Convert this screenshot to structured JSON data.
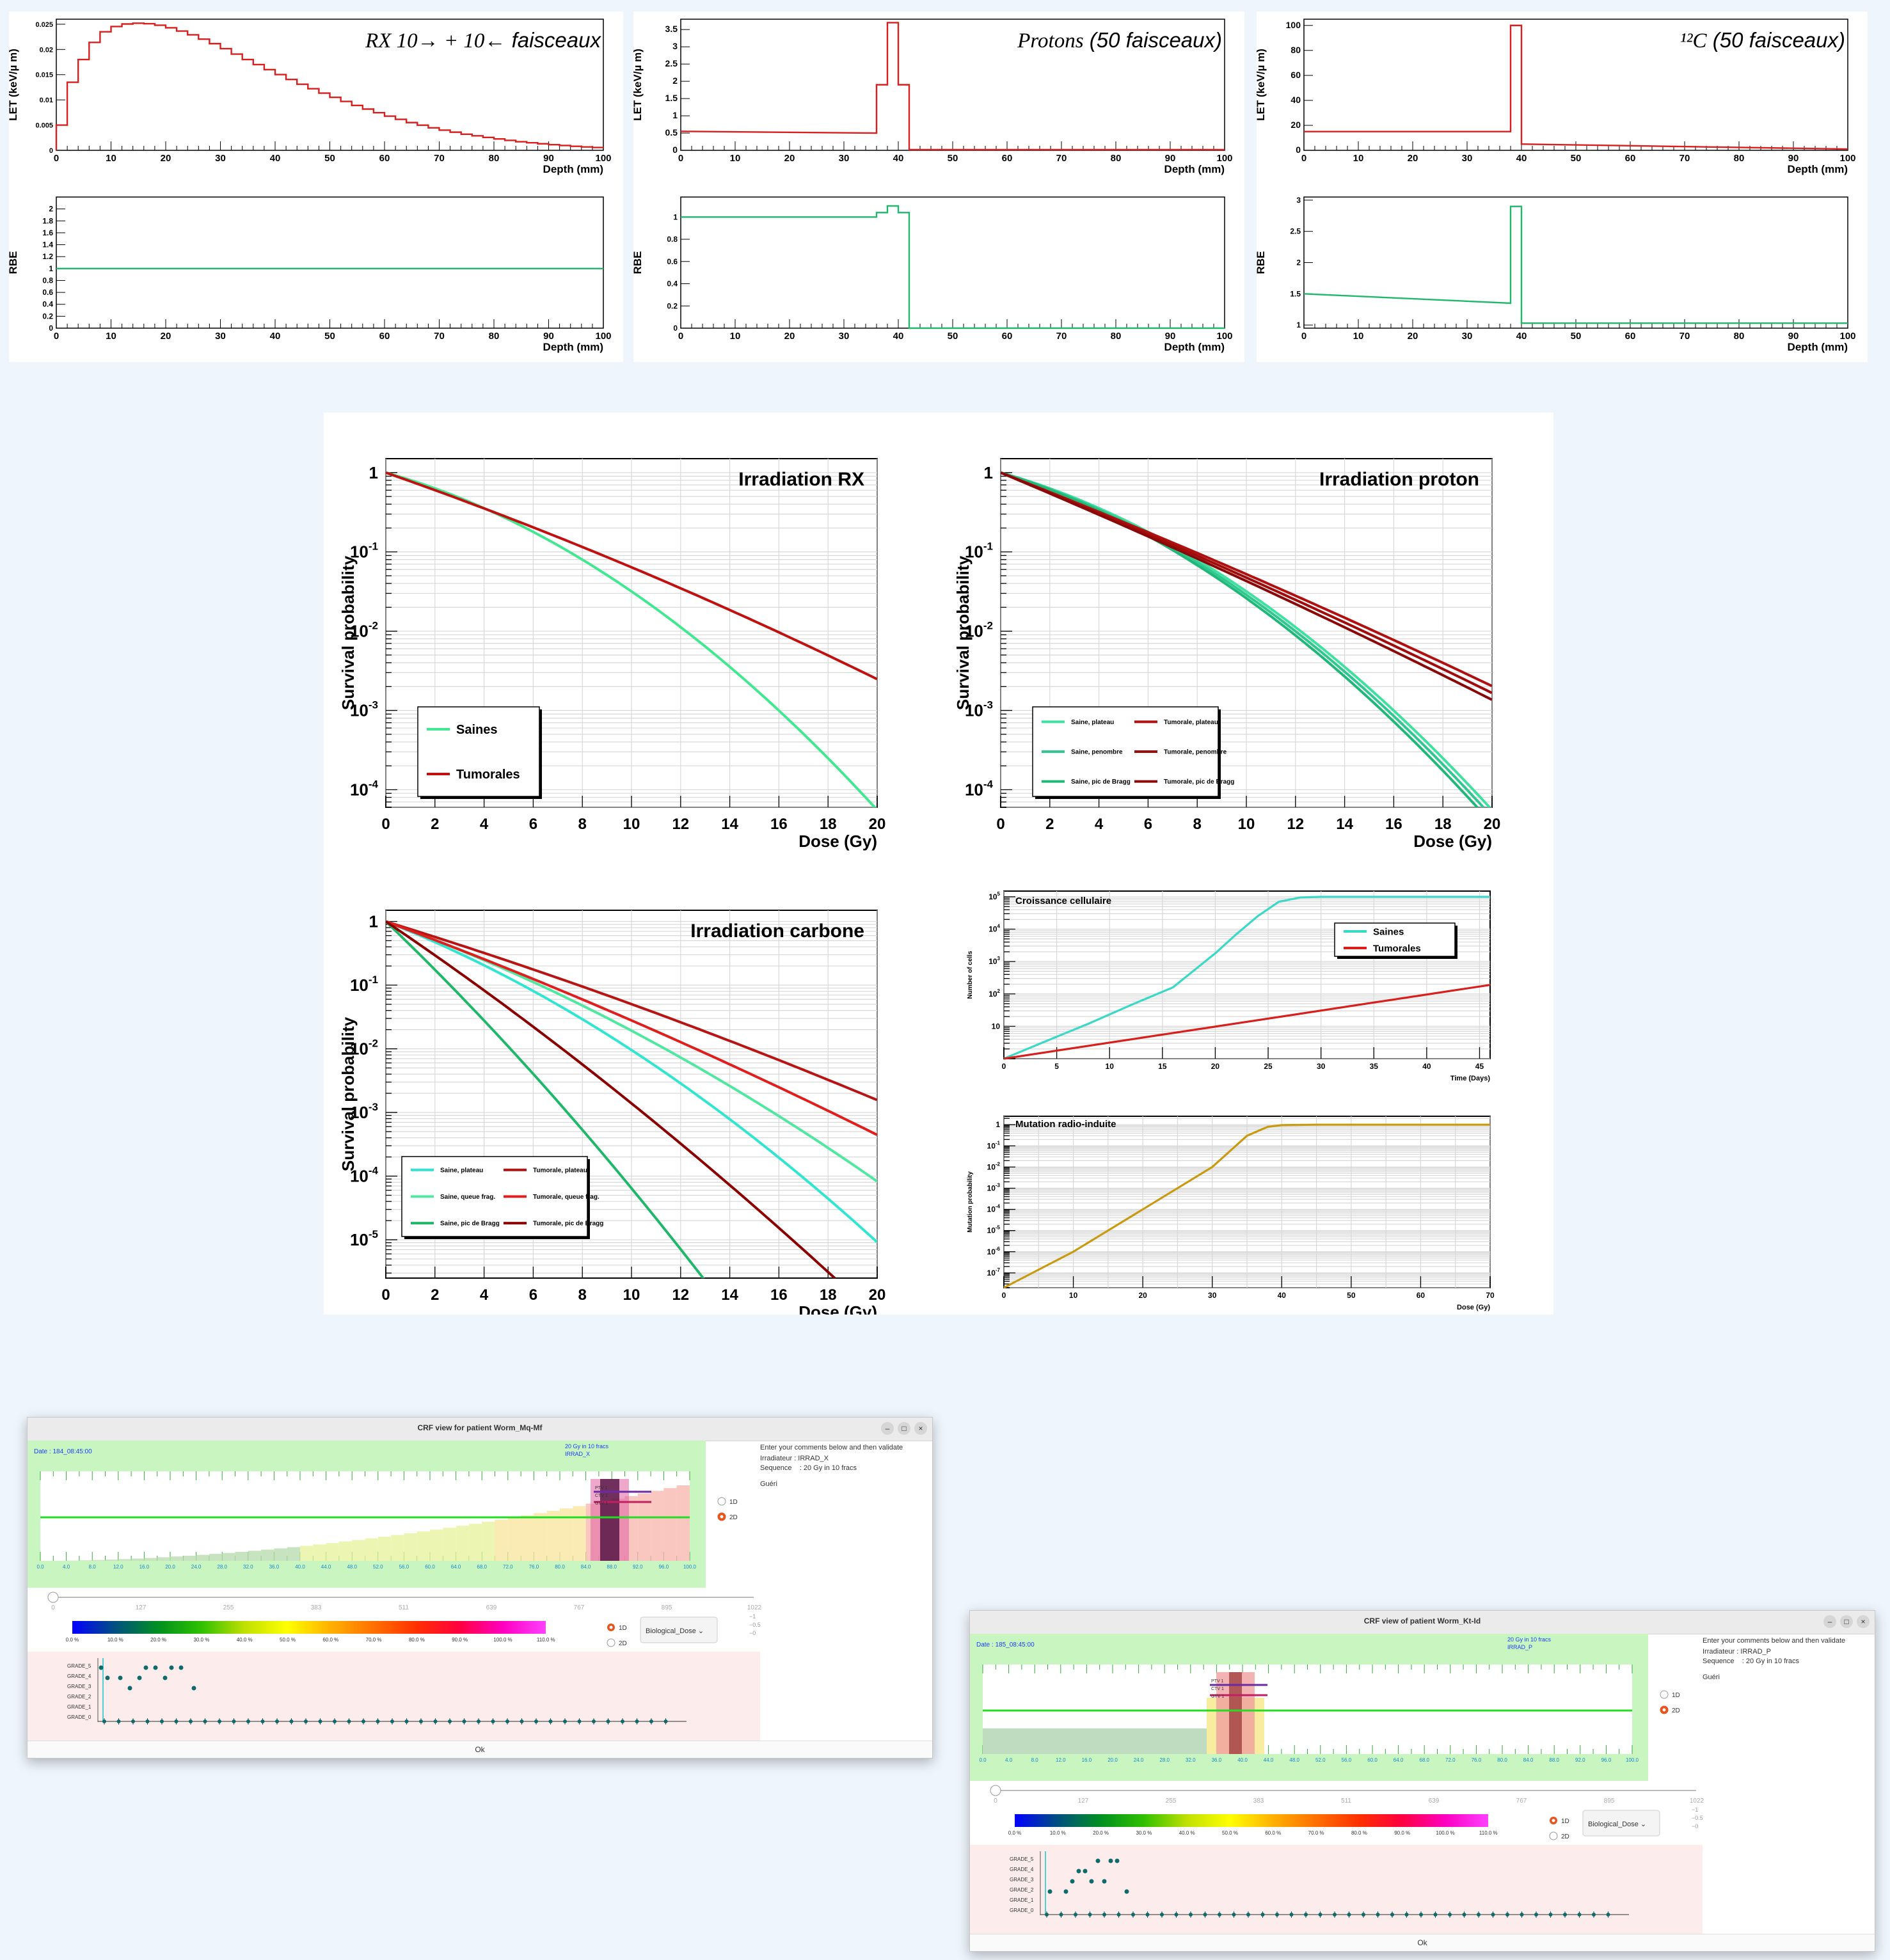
{
  "bg_colors": {
    "page": "#eef5fc",
    "red": "#d91e1e",
    "green": "#1fb86a",
    "darkred": "#8b0000",
    "cyan": "#3ad8c6",
    "gold": "#c99a10"
  },
  "top_panels": {
    "let_ylabel": "LET (keV/µ m)",
    "rbe_ylabel": "RBE",
    "xlabel": "Depth (mm)",
    "titles": [
      {
        "it": "RX 10→ + 10←",
        "rest": " faisceaux"
      },
      {
        "it": "Protons",
        "rest": " (50 faisceaux)"
      },
      {
        "it": "¹²C",
        "rest": " (50 faisceaux)"
      }
    ]
  },
  "survival": {
    "ylabel": "Survival probability",
    "xlabel": "Dose (Gy)",
    "titles": [
      "Irradiation RX",
      "Irradiation proton",
      "Irradiation carbone"
    ],
    "legend_rx": [
      "Saines",
      "Tumorales"
    ],
    "legend_proton": [
      "Saine, plateau",
      "Tumorale, plateau",
      "Saine, penombre",
      "Tumorale, penombre",
      "Saine, pic de Bragg",
      "Tumorale, pic de Bragg"
    ],
    "legend_carbon": [
      "Saine, plateau",
      "Tumorale, plateau",
      "Saine, queue frag.",
      "Tumorale, queue frag.",
      "Saine, pic de Bragg",
      "Tumorale, pic de Bragg"
    ]
  },
  "growth": {
    "title": "Croissance cellulaire",
    "ylabel": "Number of cells",
    "xlabel": "Time (Days)",
    "legend": [
      "Saines",
      "Tumorales"
    ]
  },
  "mutation": {
    "title": "Mutation radio-induite",
    "ylabel": "Mutation probability",
    "xlabel": "Dose (Gy)"
  },
  "windows": [
    {
      "title": "CRF view for patient Worm_Mq-Mf",
      "date": "Date : 184_08:45:00",
      "seq_tag": "20 Gy in 10 fracs",
      "irrad_tag": "IRRAD_X",
      "comment_prompt": "Enter your comments below and then validate",
      "irradiator": "Irradiateur : IRRAD_X",
      "sequence": "Sequence    : 20 Gy in 10 fracs",
      "comment": "Guéri",
      "radio_1d": "1D",
      "radio_2d": "2D",
      "dose_select": "Biological_Dose",
      "ok": "Ok",
      "min": "–",
      "max": "□",
      "close": "×"
    },
    {
      "title": "CRF view of patient Worm_Kt-Id",
      "date": "Date : 185_08:45:00",
      "seq_tag": "20 Gy in 10 fracs",
      "irrad_tag": "IRRAD_P",
      "comment_prompt": "Enter your comments below and then validate",
      "irradiator": "Irradiateur : IRRAD_P",
      "sequence": "Sequence    : 20 Gy in 10 fracs",
      "comment": "Guéri",
      "radio_1d": "1D",
      "radio_2d": "2D",
      "dose_select": "Biological_Dose",
      "ok": "Ok",
      "min": "–",
      "max": "□",
      "close": "×"
    }
  ],
  "crf": {
    "slider_ticks": [
      "0",
      "127",
      "255",
      "383",
      "511",
      "639",
      "767",
      "895",
      "1022"
    ],
    "colorbar_ticks": [
      "0.0 %",
      "10.0 %",
      "20.0 %",
      "30.0 %",
      "40.0 %",
      "50.0 %",
      "60.0 %",
      "70.0 %",
      "80.0 %",
      "90.0 %",
      "100.0 %",
      "110.0 %"
    ],
    "grades": [
      "GRADE_5",
      "GRADE_4",
      "GRADE_3",
      "GRADE_2",
      "GRADE_1",
      "GRADE_0"
    ],
    "depth_ticks": [
      "0.0",
      "4.0",
      "8.0",
      "12.0",
      "16.0",
      "20.0",
      "24.0",
      "28.0",
      "32.0",
      "36.0",
      "40.0",
      "44.0",
      "48.0",
      "52.0",
      "56.0",
      "60.0",
      "64.0",
      "68.0",
      "72.0",
      "76.0",
      "80.0",
      "84.0",
      "88.0",
      "92.0",
      "96.0",
      "100.0"
    ],
    "organ_labels": [
      "PTV 1",
      "CTV 1",
      "GTV 1"
    ],
    "scale_ticks": [
      "−1",
      "−0.5",
      "−0"
    ]
  },
  "chart_data": [
    {
      "type": "line",
      "title": "RX 10→ + 10← faisceaux",
      "xlabel": "Depth (mm)",
      "ylabel": "LET (keV/µ m)",
      "xlim": [
        0,
        100
      ],
      "ylim": [
        0,
        0.026
      ],
      "xticks": [
        0,
        10,
        20,
        30,
        40,
        50,
        60,
        70,
        80,
        90,
        100
      ],
      "yticks": [
        0,
        0.005,
        0.01,
        0.015,
        0.02,
        0.025
      ],
      "x": [
        0,
        1,
        2,
        4,
        6,
        8,
        10,
        12,
        14,
        16,
        18,
        20,
        22,
        24,
        26,
        28,
        30,
        35,
        40,
        45,
        50,
        55,
        60,
        65,
        70,
        75,
        80,
        85,
        90,
        95,
        100
      ],
      "y": [
        0.004,
        0.005,
        0.011,
        0.016,
        0.02,
        0.0228,
        0.0242,
        0.0249,
        0.0252,
        0.0252,
        0.025,
        0.0246,
        0.024,
        0.0233,
        0.0225,
        0.0216,
        0.0207,
        0.018,
        0.0155,
        0.0131,
        0.0109,
        0.0089,
        0.0071,
        0.0055,
        0.0042,
        0.0032,
        0.0024,
        0.0017,
        0.0012,
        0.0008,
        0.0005
      ]
    },
    {
      "type": "line",
      "title": "Protons (50 faisceaux)",
      "xlabel": "Depth (mm)",
      "ylabel": "LET (keV/µ m)",
      "xlim": [
        0,
        100
      ],
      "ylim": [
        0,
        3.8
      ],
      "xticks": [
        0,
        10,
        20,
        30,
        40,
        50,
        60,
        70,
        80,
        90,
        100
      ],
      "yticks": [
        0,
        0.5,
        1,
        1.5,
        2,
        2.5,
        3,
        3.5
      ],
      "x": [
        0,
        36,
        36,
        38,
        38,
        40,
        40,
        42,
        42,
        100
      ],
      "y": [
        0.55,
        0.5,
        1.9,
        1.9,
        3.7,
        3.7,
        1.9,
        1.9,
        0.02,
        0.02
      ]
    },
    {
      "type": "line",
      "title": "¹²C (50 faisceaux)",
      "xlabel": "Depth (mm)",
      "ylabel": "LET (keV/µ m)",
      "xlim": [
        0,
        100
      ],
      "ylim": [
        0,
        105
      ],
      "xticks": [
        0,
        10,
        20,
        30,
        40,
        50,
        60,
        70,
        80,
        90,
        100
      ],
      "yticks": [
        0,
        20,
        40,
        60,
        80,
        100
      ],
      "x": [
        0,
        38,
        38,
        40,
        40,
        100
      ],
      "y": [
        15,
        15,
        100,
        100,
        5,
        1
      ]
    },
    {
      "type": "line",
      "xlabel": "Depth (mm)",
      "ylabel": "RBE",
      "xlim": [
        0,
        100
      ],
      "ylim": [
        0,
        2.2
      ],
      "xticks": [
        0,
        10,
        20,
        30,
        40,
        50,
        60,
        70,
        80,
        90,
        100
      ],
      "yticks": [
        0,
        0.2,
        0.4,
        0.6,
        0.8,
        1,
        1.2,
        1.4,
        1.6,
        1.8,
        2
      ],
      "x": [
        0,
        100
      ],
      "y": [
        1,
        1
      ]
    },
    {
      "type": "line",
      "xlabel": "Depth (mm)",
      "ylabel": "RBE",
      "xlim": [
        0,
        100
      ],
      "ylim": [
        0,
        1.18
      ],
      "xticks": [
        0,
        10,
        20,
        30,
        40,
        50,
        60,
        70,
        80,
        90,
        100
      ],
      "yticks": [
        0,
        0.2,
        0.4,
        0.6,
        0.8,
        1
      ],
      "x": [
        0,
        36,
        36,
        38,
        38,
        40,
        40,
        42,
        42,
        100
      ],
      "y": [
        1,
        1,
        1.04,
        1.04,
        1.1,
        1.1,
        1.04,
        1.04,
        0,
        0
      ]
    },
    {
      "type": "line",
      "xlabel": "Depth (mm)",
      "ylabel": "RBE",
      "xlim": [
        0,
        100
      ],
      "ylim": [
        0.95,
        3.05
      ],
      "xticks": [
        0,
        10,
        20,
        30,
        40,
        50,
        60,
        70,
        80,
        90,
        100
      ],
      "yticks": [
        1,
        1.5,
        2,
        2.5,
        3
      ],
      "x": [
        0,
        38,
        38,
        40,
        40,
        100
      ],
      "y": [
        1.5,
        1.35,
        2.9,
        2.9,
        1.03,
        1.03
      ]
    },
    {
      "type": "line",
      "title": "Irradiation RX",
      "xlabel": "Dose (Gy)",
      "ylabel": "Survival probability",
      "log_y": true,
      "xlim": [
        0,
        20
      ],
      "ylim": [
        6e-05,
        1.5
      ],
      "series": [
        {
          "name": "Saines",
          "alpha": 0.2,
          "beta": 0.0145
        },
        {
          "name": "Tumorales",
          "alpha": 0.25,
          "beta": 0.0025
        }
      ]
    },
    {
      "type": "line",
      "title": "Irradiation proton",
      "xlabel": "Dose (Gy)",
      "ylabel": "Survival probability",
      "log_y": true,
      "xlim": [
        0,
        20
      ],
      "ylim": [
        6e-05,
        1.5
      ],
      "series": [
        {
          "name": "Saine, plateau",
          "alpha": 0.2,
          "beta": 0.0145
        },
        {
          "name": "Saine, penombre",
          "alpha": 0.21,
          "beta": 0.0145
        },
        {
          "name": "Saine, pic de Bragg",
          "alpha": 0.22,
          "beta": 0.0145
        },
        {
          "name": "Tumorale, plateau",
          "alpha": 0.28,
          "beta": 0.0015
        },
        {
          "name": "Tumorale, penombre",
          "alpha": 0.29,
          "beta": 0.0015
        },
        {
          "name": "Tumorale, pic de Bragg",
          "alpha": 0.3,
          "beta": 0.0015
        }
      ]
    },
    {
      "type": "line",
      "title": "Irradiation carbone",
      "xlabel": "Dose (Gy)",
      "ylabel": "Survival probability",
      "log_y": true,
      "xlim": [
        0,
        20
      ],
      "ylim": [
        2.5e-06,
        1.5
      ],
      "series": [
        {
          "name": "Saine, plateau",
          "alpha": 0.35,
          "beta": 0.0115
        },
        {
          "name": "Saine, queue frag.",
          "alpha": 0.32,
          "beta": 0.0075
        },
        {
          "name": "Saine, pic de Bragg",
          "alpha": 0.85,
          "beta": 0.0115
        },
        {
          "name": "Tumorale, plateau",
          "alpha": 0.275,
          "beta": 0.0024
        },
        {
          "name": "Tumorale, queue frag.",
          "alpha": 0.33,
          "beta": 0.0028
        },
        {
          "name": "Tumorale, pic de Bragg",
          "alpha": 0.6,
          "beta": 0.0058
        }
      ]
    },
    {
      "type": "line",
      "title": "Croissance cellulaire",
      "xlabel": "Time (Days)",
      "ylabel": "Number of cells",
      "log_y": true,
      "xlim": [
        0,
        46
      ],
      "ylim": [
        1,
        150000.0
      ],
      "xticks": [
        0,
        5,
        10,
        15,
        20,
        25,
        30,
        35,
        40,
        45
      ],
      "series": [
        {
          "name": "Saines",
          "x": [
            0,
            4,
            8,
            12,
            16,
            20,
            22,
            24,
            26,
            28,
            30,
            35,
            40,
            46
          ],
          "y": [
            1,
            3.5,
            12,
            45,
            160,
            1800,
            7000,
            25000,
            70000,
            95000,
            100000,
            100000,
            100000,
            100000
          ]
        },
        {
          "name": "Tumorales",
          "x": [
            0,
            46
          ],
          "y": [
            1,
            190
          ]
        }
      ]
    },
    {
      "type": "line",
      "title": "Mutation radio-induite",
      "xlabel": "Dose (Gy)",
      "ylabel": "Mutation probability",
      "log_y": true,
      "xlim": [
        0,
        70
      ],
      "ylim": [
        2e-08,
        2.5
      ],
      "xticks": [
        0,
        10,
        20,
        30,
        40,
        50,
        60,
        70
      ],
      "series": [
        {
          "name": "",
          "x": [
            0,
            10,
            20,
            30,
            35,
            38,
            40,
            45,
            70
          ],
          "y": [
            2e-08,
            1e-06,
            0.0001,
            0.01,
            0.3,
            0.8,
            0.95,
            1,
            1
          ]
        }
      ]
    }
  ]
}
